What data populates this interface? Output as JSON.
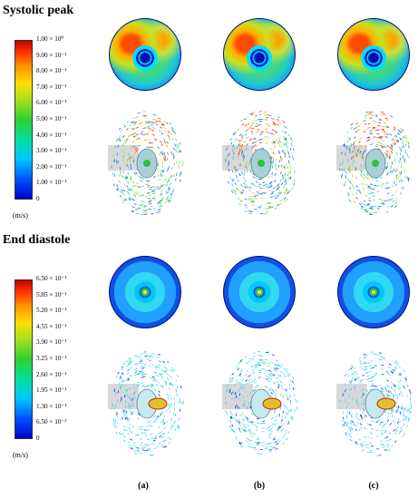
{
  "systolic": {
    "title": "Systolic peak",
    "ticks": [
      {
        "value": 1.0,
        "label": "1.00 × 10⁰"
      },
      {
        "value": 0.9,
        "label": "9.00 × 10⁻¹"
      },
      {
        "value": 0.8,
        "label": "8.00 × 10⁻¹"
      },
      {
        "value": 0.7,
        "label": "7.00 × 10⁻¹"
      },
      {
        "value": 0.6,
        "label": "6.00 × 10⁻¹"
      },
      {
        "value": 0.5,
        "label": "5.00 × 10⁻¹"
      },
      {
        "value": 0.4,
        "label": "4.00 × 10⁻¹"
      },
      {
        "value": 0.3,
        "label": "3.00 × 10⁻¹"
      },
      {
        "value": 0.2,
        "label": "2.00 × 10⁻¹"
      },
      {
        "value": 0.1,
        "label": "1.00 × 10⁻¹"
      },
      {
        "value": 0.0,
        "label": "0"
      }
    ],
    "unit": "(m/s)"
  },
  "diastole": {
    "title": "End diastole",
    "ticks": [
      {
        "value": 0.65,
        "label": "6.50 × 10⁻¹"
      },
      {
        "value": 0.585,
        "label": "5.85 × 10⁻¹"
      },
      {
        "value": 0.52,
        "label": "5.20 × 10⁻¹"
      },
      {
        "value": 0.455,
        "label": "4.55 × 10⁻¹"
      },
      {
        "value": 0.39,
        "label": "3.90 × 10⁻¹"
      },
      {
        "value": 0.325,
        "label": "3.25 × 10⁻¹"
      },
      {
        "value": 0.26,
        "label": "2.60 × 10⁻¹"
      },
      {
        "value": 0.195,
        "label": "1.95 × 10⁻¹"
      },
      {
        "value": 0.13,
        "label": "1.30 × 10⁻¹"
      },
      {
        "value": 0.065,
        "label": "6.50 × 10⁻²"
      },
      {
        "value": 0.0,
        "label": "0"
      }
    ],
    "unit": "(m/s)"
  },
  "columns": [
    "(a)",
    "(b)",
    "(c)"
  ],
  "colors": {
    "scale": [
      "#0000c8",
      "#0050ff",
      "#00c8ff",
      "#00e0a0",
      "#30d030",
      "#a0e020",
      "#ffe000",
      "#ff9000",
      "#ff3000",
      "#c00000"
    ]
  }
}
